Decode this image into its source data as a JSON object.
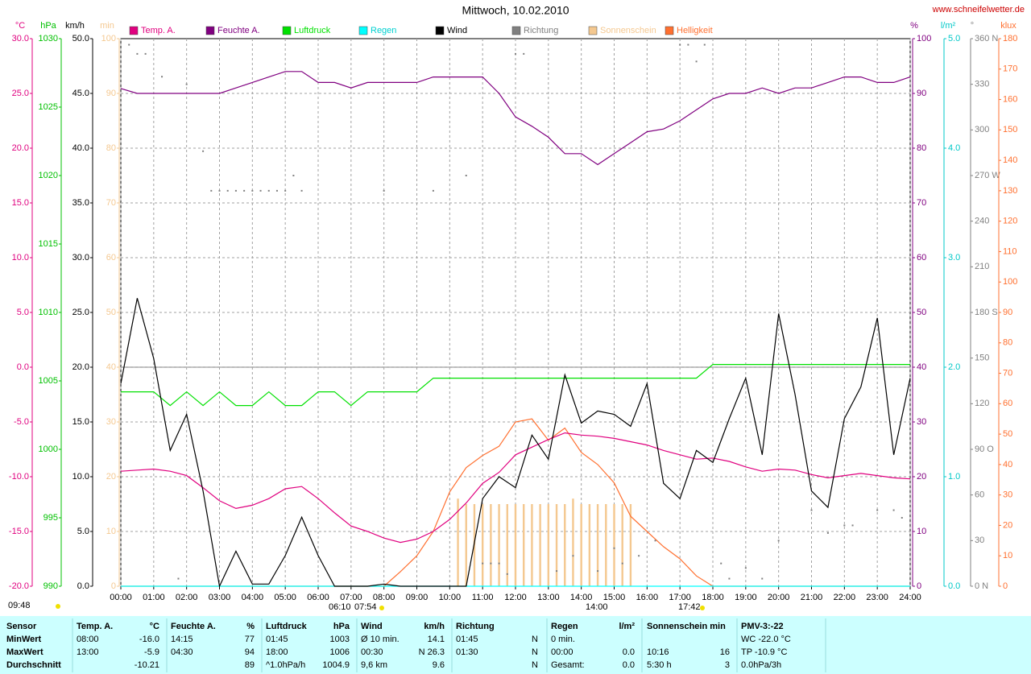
{
  "chart_data": {
    "type": "line",
    "title": "Mittwoch, 10.02.2010",
    "source": "www.schneifelwetter.de",
    "xlim": [
      0,
      24
    ],
    "xticks": [
      {
        "value": 0,
        "label": "00:00"
      },
      {
        "value": 1,
        "label": "01:00"
      },
      {
        "value": 2,
        "label": "02:00"
      },
      {
        "value": 3,
        "label": "03:00"
      },
      {
        "value": 4,
        "label": "04:00"
      },
      {
        "value": 5,
        "label": "05:00"
      },
      {
        "value": 6,
        "label": "06:00"
      },
      {
        "value": 7,
        "label": "07:00"
      },
      {
        "value": 8,
        "label": "08:00"
      },
      {
        "value": 9,
        "label": "09:00"
      },
      {
        "value": 10,
        "label": "10:00"
      },
      {
        "value": 11,
        "label": "11:00"
      },
      {
        "value": 12,
        "label": "12:00"
      },
      {
        "value": 13,
        "label": "13:00"
      },
      {
        "value": 14,
        "label": "14:00"
      },
      {
        "value": 15,
        "label": "15:00"
      },
      {
        "value": 16,
        "label": "16:00"
      },
      {
        "value": 17,
        "label": "17:00"
      },
      {
        "value": 18,
        "label": "18:00"
      },
      {
        "value": 19,
        "label": "19:00"
      },
      {
        "value": 20,
        "label": "20:00"
      },
      {
        "value": 21,
        "label": "21:00"
      },
      {
        "value": 22,
        "label": "22:00"
      },
      {
        "value": 23,
        "label": "23:00"
      },
      {
        "value": 24,
        "label": "24:00"
      }
    ],
    "grid": true,
    "x": [
      0,
      0.5,
      1,
      1.5,
      2,
      2.5,
      3,
      3.5,
      4,
      4.5,
      5,
      5.5,
      6,
      6.5,
      7,
      7.5,
      8,
      8.5,
      9,
      9.5,
      10,
      10.5,
      11,
      11.5,
      12,
      12.5,
      13,
      13.5,
      14,
      14.5,
      15,
      15.5,
      16,
      16.5,
      17,
      17.5,
      18,
      18.5,
      19,
      19.5,
      20,
      20.5,
      21,
      21.5,
      22,
      22.5,
      23,
      23.5,
      24
    ],
    "axes": [
      {
        "unit": "°C",
        "side": "left",
        "color": "#e0007f",
        "ylim": [
          -20,
          30
        ],
        "zero_line": true,
        "yticks": [
          {
            "value": -20,
            "label": "-20.0"
          },
          {
            "value": -15,
            "label": "-15.0"
          },
          {
            "value": -10,
            "label": "-10.0"
          },
          {
            "value": -5,
            "label": "-5.0"
          },
          {
            "value": 0,
            "label": "0.0"
          },
          {
            "value": 5,
            "label": "5.0"
          },
          {
            "value": 10,
            "label": "10.0"
          },
          {
            "value": 15,
            "label": "15.0"
          },
          {
            "value": 20,
            "label": "20.0"
          },
          {
            "value": 25,
            "label": "25.0"
          },
          {
            "value": 30,
            "label": "30.0"
          }
        ]
      },
      {
        "unit": "hPa",
        "side": "left",
        "color": "#00c000",
        "ylim": [
          990,
          1030
        ],
        "yticks": [
          990,
          995,
          1000,
          1005,
          1010,
          1015,
          1020,
          1025,
          1030
        ]
      },
      {
        "unit": "km/h",
        "side": "left",
        "color": "#000000",
        "ylim": [
          0,
          50
        ],
        "grid": true,
        "yticks": [
          {
            "value": 0,
            "label": "0.0"
          },
          {
            "value": 5,
            "label": "5.0"
          },
          {
            "value": 10,
            "label": "10.0"
          },
          {
            "value": 15,
            "label": "15.0"
          },
          {
            "value": 20,
            "label": "20.0"
          },
          {
            "value": 25,
            "label": "25.0"
          },
          {
            "value": 30,
            "label": "30.0"
          },
          {
            "value": 35,
            "label": "35.0"
          },
          {
            "value": 40,
            "label": "40.0"
          },
          {
            "value": 45,
            "label": "45.0"
          },
          {
            "value": 50,
            "label": "50.0"
          }
        ]
      },
      {
        "unit": "min",
        "side": "left",
        "color": "#f4c890",
        "ylim": [
          0,
          100
        ],
        "yticks": [
          0,
          10,
          20,
          30,
          40,
          50,
          60,
          70,
          80,
          90,
          100
        ]
      },
      {
        "unit": "%",
        "side": "right",
        "color": "#800080",
        "ylim": [
          0,
          100
        ],
        "yticks": [
          0,
          10,
          20,
          30,
          40,
          50,
          60,
          70,
          80,
          90,
          100
        ]
      },
      {
        "unit": "l/m²",
        "side": "right",
        "color": "#00c8c8",
        "ylim": [
          0,
          5
        ],
        "yticks": [
          {
            "value": 0,
            "label": "0.0"
          },
          {
            "value": 1,
            "label": "1.0"
          },
          {
            "value": 2,
            "label": "2.0"
          },
          {
            "value": 3,
            "label": "3.0"
          },
          {
            "value": 4,
            "label": "4.0"
          },
          {
            "value": 5,
            "label": "5.0"
          }
        ]
      },
      {
        "unit": "°",
        "side": "right",
        "color": "#808080",
        "ylim": [
          0,
          360
        ],
        "yticks": [
          {
            "value": 0,
            "label": "0 N"
          },
          30,
          60,
          {
            "value": 90,
            "label": "90 O"
          },
          120,
          150,
          {
            "value": 180,
            "label": "180 S"
          },
          210,
          240,
          {
            "value": 270,
            "label": "270 W"
          },
          300,
          330,
          {
            "value": 360,
            "label": "360 N"
          }
        ]
      },
      {
        "unit": "klux",
        "side": "right",
        "color": "#ff7030",
        "ylim": [
          0,
          180
        ],
        "yticks": [
          0,
          10,
          20,
          30,
          40,
          50,
          60,
          70,
          80,
          90,
          100,
          110,
          120,
          130,
          140,
          150,
          160,
          170,
          180
        ]
      }
    ],
    "series": [
      {
        "name": "Temp. A.",
        "color": "#e0007f",
        "axis": 0,
        "style": "line",
        "values": [
          -9.5,
          -9.4,
          -9.3,
          -9.5,
          -9.9,
          -11.0,
          -12.2,
          -12.9,
          -12.6,
          -12.0,
          -11.1,
          -10.9,
          -12.0,
          -13.3,
          -14.5,
          -15.0,
          -15.6,
          -16.0,
          -15.7,
          -15.0,
          -13.9,
          -12.4,
          -10.6,
          -9.6,
          -8.0,
          -7.3,
          -6.6,
          -6.0,
          -6.2,
          -6.3,
          -6.5,
          -6.8,
          -7.1,
          -7.6,
          -8.0,
          -8.4,
          -8.3,
          -8.6,
          -9.1,
          -9.5,
          -9.3,
          -9.4,
          -9.8,
          -10.1,
          -9.9,
          -9.7,
          -9.9,
          -10.1,
          -10.2
        ]
      },
      {
        "name": "Feuchte A.",
        "color": "#800080",
        "axis": 4,
        "style": "line",
        "values": [
          90.9,
          90,
          90,
          90,
          90,
          90,
          90,
          91,
          92,
          93,
          94,
          94,
          92,
          92,
          91,
          92,
          92,
          92,
          92,
          93,
          93,
          93,
          93,
          90,
          85.7,
          84,
          82,
          79,
          79,
          77,
          79,
          81,
          83,
          83.5,
          85,
          87,
          89,
          90,
          90,
          91,
          90,
          91,
          91,
          92,
          93,
          93,
          92,
          92,
          93
        ]
      },
      {
        "name": "Luftdruck",
        "color": "#00e000",
        "axis": 1,
        "style": "line",
        "values": [
          1004.2,
          1004.2,
          1004.2,
          1003.2,
          1004.2,
          1003.2,
          1004.2,
          1003.2,
          1003.2,
          1004.2,
          1003.2,
          1003.2,
          1004.2,
          1004.2,
          1003.2,
          1004.2,
          1004.2,
          1004.2,
          1004.2,
          1005.2,
          1005.2,
          1005.2,
          1005.2,
          1005.2,
          1005.2,
          1005.2,
          1005.2,
          1005.2,
          1005.2,
          1005.2,
          1005.2,
          1005.2,
          1005.2,
          1005.2,
          1005.2,
          1005.2,
          1006.2,
          1006.2,
          1006.2,
          1006.2,
          1006.2,
          1006.2,
          1006.2,
          1006.2,
          1006.2,
          1006.2,
          1006.2,
          1006.2,
          1006.2
        ]
      },
      {
        "name": "Regen",
        "color": "#00ffff",
        "axis": 5,
        "style": "line",
        "x": [
          0,
          24
        ],
        "values": [
          0,
          0
        ]
      },
      {
        "name": "Wind",
        "color": "#000000",
        "axis": 2,
        "style": "line",
        "values": [
          18.5,
          26.3,
          20.8,
          12.4,
          15.7,
          8.7,
          0,
          3.2,
          0.2,
          0.2,
          2.8,
          6.3,
          2.8,
          0,
          0,
          0,
          0.2,
          0,
          0,
          0,
          0,
          0,
          8,
          10,
          9,
          13.8,
          11.6,
          19.3,
          14.9,
          16,
          15.7,
          14.6,
          18.5,
          9.4,
          8,
          12.4,
          11.3,
          15.3,
          19,
          12,
          24.9,
          17.5,
          8.7,
          7.2,
          15.3,
          18.2,
          24.5,
          12,
          19
        ]
      },
      {
        "name": "Richtung",
        "color": "#808080",
        "axis": 6,
        "style": "dots",
        "x": [
          0.25,
          0.5,
          0.75,
          1.25,
          1.75,
          2,
          2.5,
          2.75,
          3,
          3.25,
          3.5,
          3.75,
          4,
          4.25,
          4.5,
          4.75,
          5,
          5.25,
          5.5,
          8,
          9.5,
          10.5,
          11,
          11.25,
          11.5,
          11.75,
          12,
          12.25,
          13.25,
          13.75,
          14.5,
          15,
          15.25,
          15.75,
          16.25,
          17,
          17.25,
          17.5,
          17.75,
          18.25,
          18.5,
          19,
          19.5,
          20,
          21,
          21.5,
          22,
          22.25,
          23,
          23.5,
          23.75
        ],
        "values": [
          356,
          350,
          350,
          335,
          5,
          330,
          286,
          260,
          260,
          260,
          260,
          260,
          260,
          260,
          260,
          260,
          260,
          270,
          260,
          260,
          260,
          270,
          15,
          15,
          15,
          8,
          350,
          350,
          10,
          20,
          10,
          25,
          15,
          20,
          30,
          356,
          356,
          345,
          356,
          15,
          5,
          12,
          5,
          30,
          50,
          35,
          40,
          40,
          50,
          50,
          45
        ]
      },
      {
        "name": "Sonnenschein",
        "color": "#f4c890",
        "axis": 3,
        "style": "bars",
        "x": [
          10.25,
          10.5,
          10.75,
          11,
          11.25,
          11.5,
          11.75,
          12,
          12.25,
          12.5,
          12.75,
          13,
          13.25,
          13.5,
          13.75,
          14,
          14.25,
          14.5,
          14.75,
          15,
          15.25,
          15.5
        ],
        "values": [
          16,
          15,
          15,
          15,
          15,
          15,
          15,
          15,
          15,
          15,
          15,
          15,
          15,
          15,
          16,
          15,
          15,
          15,
          15,
          15,
          15,
          15
        ]
      },
      {
        "name": "Helligkeit",
        "color": "#ff7030",
        "axis": 7,
        "style": "line",
        "values": [
          0,
          0,
          0,
          0,
          0,
          0,
          0,
          0,
          0,
          0,
          0,
          0,
          0,
          0,
          0,
          0,
          0,
          4.8,
          10,
          18,
          31,
          39,
          43,
          46,
          54,
          55,
          48,
          52,
          44,
          40,
          34,
          23,
          18,
          13,
          9,
          3.4,
          0,
          0,
          0,
          0,
          0,
          0,
          0,
          0,
          0,
          0,
          0,
          0,
          0
        ]
      }
    ],
    "draw_order": [
      6,
      7,
      2,
      3,
      1,
      0,
      4,
      5
    ],
    "annotations": [
      "09:48",
      "06:10",
      "07:54",
      "14:00",
      "17:42"
    ]
  },
  "stats_table": {
    "header": [
      "Sensor",
      "Temp. A.",
      "°C",
      "Feuchte A.",
      "%",
      "Luftdruck",
      "hPa",
      "Wind",
      "km/h",
      "Richtung",
      null,
      "Regen",
      "l/m²",
      "Sonnenschein min",
      null,
      "PMV-3:-22"
    ],
    "rows": [
      [
        "MinWert",
        "08:00",
        "-16.0",
        "14:15",
        "77",
        "01:45",
        "1003",
        "Ø 10 min.",
        "14.1",
        "01:45",
        "N",
        "0 min.",
        null,
        null,
        null,
        "WC -22.0 °C"
      ],
      [
        "MaxWert",
        "13:00",
        "-5.9",
        "04:30",
        "94",
        "18:00",
        "1006",
        "00:30",
        "N 26.3",
        "01:30",
        "N",
        "00:00",
        "0.0",
        "10:16",
        "16",
        "TP -10.9 °C"
      ],
      [
        "Durchschnitt",
        null,
        "-10.21",
        null,
        "89",
        "^1.0hPa/h",
        "1004.9",
        "9,6 km",
        "9.6",
        null,
        "N",
        "Gesamt:",
        "0.0",
        "5:30 h",
        "3",
        "0.0hPa/3h"
      ]
    ]
  }
}
